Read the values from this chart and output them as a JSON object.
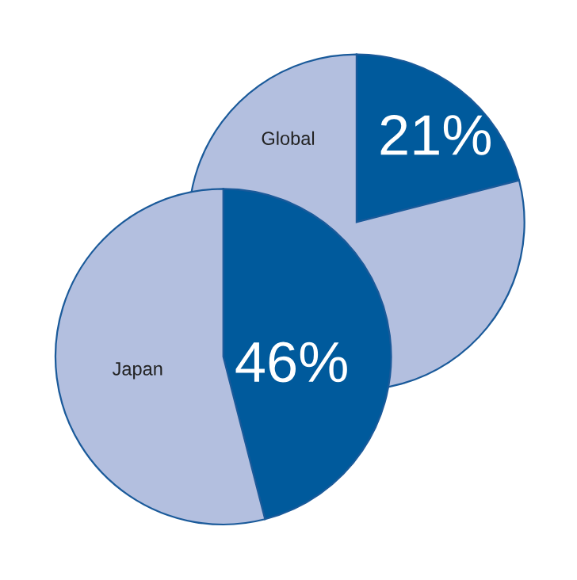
{
  "chart_data": [
    {
      "type": "pie",
      "title": "Global",
      "categories": [
        null,
        null
      ],
      "values": [
        21,
        79
      ],
      "colors": [
        "#005a9c",
        "#b3bfdf"
      ],
      "value_labels": [
        "21%",
        null
      ]
    },
    {
      "type": "pie",
      "title": "Japan",
      "categories": [
        null,
        null
      ],
      "values": [
        46,
        54
      ],
      "colors": [
        "#005a9c",
        "#b3bfdf"
      ],
      "value_labels": [
        "46%",
        null
      ]
    }
  ]
}
